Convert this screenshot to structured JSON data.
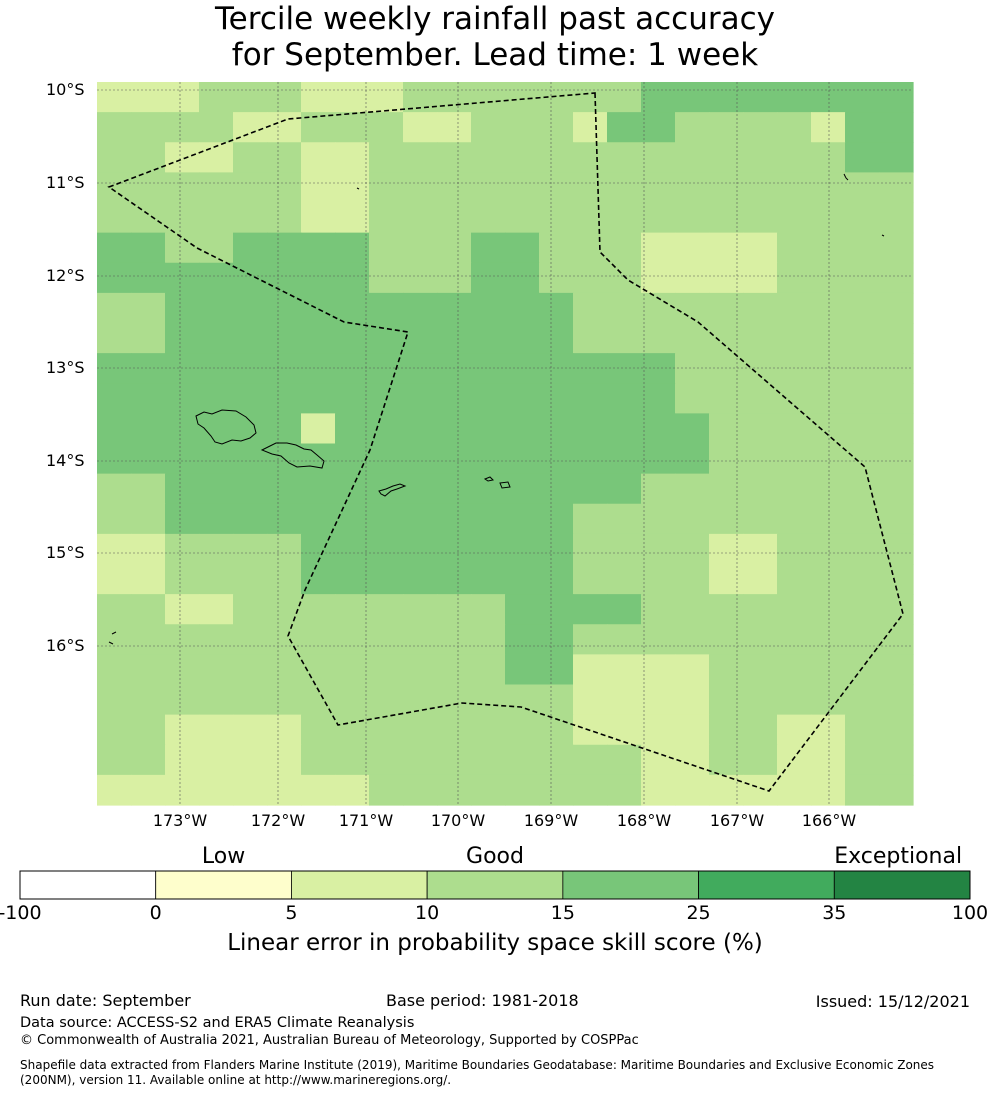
{
  "title": {
    "line1": "Tercile weekly rainfall past accuracy",
    "line2": "for September. Lead time: 1 week"
  },
  "map": {
    "lat_labels": [
      "10°S",
      "11°S",
      "12°S",
      "13°S",
      "14°S",
      "15°S",
      "16°S"
    ],
    "lon_labels": [
      "173°W",
      "172°W",
      "171°W",
      "170°W",
      "169°W",
      "168°W",
      "167°W",
      "166°W"
    ],
    "colors": {
      "c0": "#ffffff",
      "c5": "#fefecc",
      "c10": "#d9f0a3",
      "c15": "#addd8e",
      "c25": "#78c679",
      "c35": "#41ab5d",
      "c100": "#238443"
    },
    "grid_rows": [
      "DDDCCCDDDCCCCCCCBBBBBBBB",
      "CCCCDDCCCDDCCCDBBCCCCDBB",
      "CCDDCCDDCCCCCCCCCCCCCCBB",
      "CCCCCCDDCCCCCCCCCCCCCCCC",
      "CCCCCCDDCCCCCCCCCCCCCCCC",
      "BBCCBBBBCCCBBCCCDDDDCCCC",
      "BBBBBBBBCCCBBCCCDDDDCCCC",
      "CCBBBBBBBBBBBBCCCCCCCCCC",
      "CCBBBBBBBBBBBBCCCCCCCCCC",
      "BBBBBBBBBBBBBBBBBCCCCCCC",
      "BBBBBBBBBBBBBBBBBCCCCCCC",
      "BBBBBBDBBBBBBBBBBBCCCCCC",
      "BBBBBBBBBBBBBBBBBBCCCCCC",
      "CCBBBBBBBBBBBBBBCCCCCCCC",
      "CCBBBBBBBBBBBBCCCCCCCCCC",
      "DDCCCCBBBBBBBBCCCCDDCCCC",
      "DDCCCCBBBBBBBBCCCCDDCCCC",
      "CCDDCCCCCCCCBBBBCCCCCCCC",
      "CCCCCCCCCCCCBBCCCCCCCCCC",
      "CCCCCCCCCCCCBBDDDDCCCCCC",
      "CCCCCCCCCCCCCCDDDDCCCCCC",
      "CCDDDDCCCCCCCCDDDDCCDDCC",
      "CCDDDDCCCCCCCCCCDDCCDDCC",
      "DDDDDDDDCCCCCCCCDDDDDDCC"
    ],
    "grid_legend": "B = 15 to 25 %, C = 10 to 15 %, D = 5 to 10 %"
  },
  "colorbar": {
    "categories": [
      {
        "label": "Low",
        "value": 5
      },
      {
        "label": "Good",
        "value": 15
      },
      {
        "label": "Exceptional",
        "value": 100
      }
    ],
    "ticks": [
      "-100",
      "0",
      "5",
      "10",
      "15",
      "25",
      "35",
      "100"
    ],
    "bins": [
      "c0",
      "c5",
      "c10",
      "c15",
      "c25",
      "c35",
      "c100"
    ],
    "label": "Linear error in probability space skill score (%)"
  },
  "footer": {
    "run_date": "Run date: September",
    "base_period": "Base period: 1981-2018",
    "issued": "Issued: 15/12/2021",
    "data_source": "Data source: ACCESS-S2 and ERA5 Climate Reanalysis",
    "copyright": "© Commonwealth of Australia 2021, Australian Bureau of Meteorology, Supported by COSPPac",
    "shapefile_line1": "Shapefile data extracted from Flanders Marine Institute (2019), Maritime Boundaries Geodatabase: Maritime Boundaries and Exclusive Economic Zones",
    "shapefile_line2": "(200NM), version 11. Available online at http://www.marineregions.org/."
  }
}
